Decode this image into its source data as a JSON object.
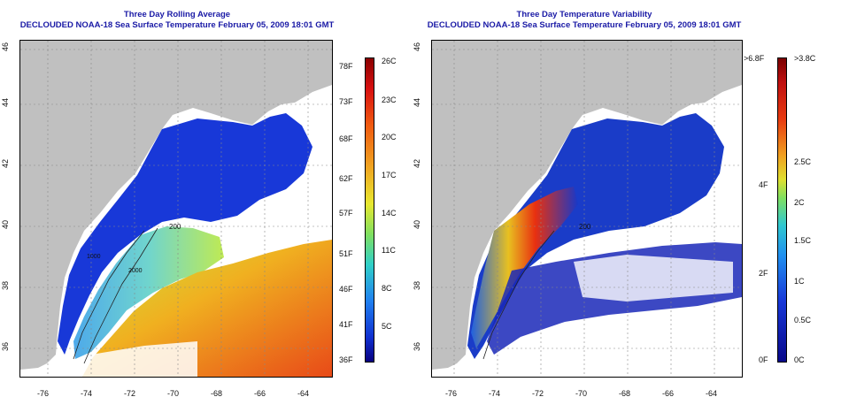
{
  "left_panel": {
    "title_line1": "Three Day Rolling Average",
    "title_line2": "DECLOUDED NOAA-18 Sea Surface Temperature February 05, 2009 18:01 GMT",
    "colorbar_fahrenheit": [
      "78F",
      "73F",
      "68F",
      "62F",
      "57F",
      "51F",
      "46F",
      "41F",
      "36F"
    ],
    "colorbar_celsius": [
      "26C",
      "23C",
      "20C",
      "17C",
      "14C",
      "11C",
      "8C",
      "5C"
    ],
    "contour_labels": [
      "200",
      "2000",
      "1000"
    ]
  },
  "right_panel": {
    "title_line1": "Three Day Temperature Variability",
    "title_line2": "DECLOUDED NOAA-18 Sea Surface Temperature February 05, 2009 18:01 GMT",
    "colorbar_fahrenheit": [
      ">6.8F",
      "4F",
      "2F",
      "0F"
    ],
    "colorbar_celsius": [
      ">3.8C",
      "2.5C",
      "2C",
      "1.5C",
      "1C",
      "0.5C",
      "0C"
    ],
    "contour_labels": [
      "200"
    ]
  },
  "axes": {
    "lon_ticks": [
      "-76",
      "-74",
      "-72",
      "-70",
      "-68",
      "-66",
      "-64"
    ],
    "lat_ticks": [
      "46",
      "44",
      "42",
      "40",
      "38",
      "36"
    ]
  },
  "colors": {
    "title": "#1a1aa6",
    "land": "#c0c0c0",
    "cloud": "#ffffff",
    "cold": "#1030c8",
    "warm": "#e8501a"
  }
}
